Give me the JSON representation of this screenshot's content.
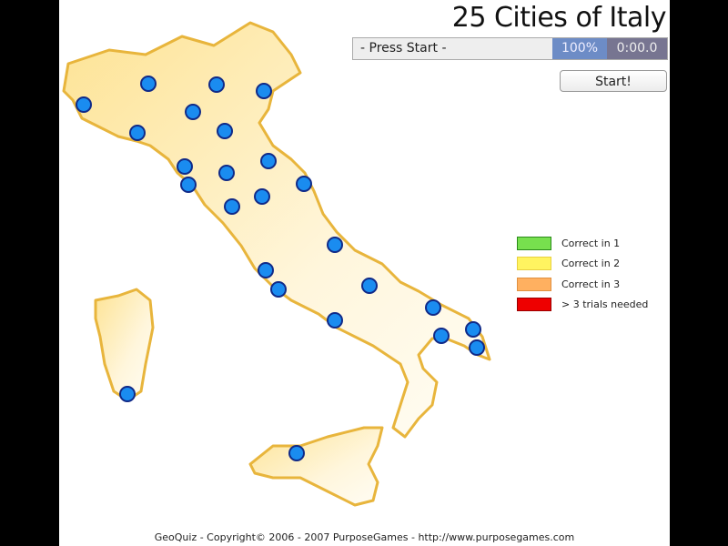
{
  "title": "25 Cities of Italy",
  "status": {
    "message": "- Press Start -",
    "percent": "100%",
    "timer": "0:00.0"
  },
  "start_button": "Start!",
  "legend": [
    {
      "label": "Correct in 1",
      "color": "#77e04e"
    },
    {
      "label": "Correct in 2",
      "color": "#fff460"
    },
    {
      "label": "Correct in 3",
      "color": "#ffb060"
    },
    {
      "label": "> 3 trials needed",
      "color": "#ee0000"
    }
  ],
  "map": {
    "region": "Italy",
    "city_count": 25,
    "dot_color": "#1a8cf0",
    "land_color": "#fde9a8",
    "border_color": "#e8b53c"
  },
  "footer": "GeoQuiz - Copyright© 2006 - 2007 PurposeGames - http://www.purposegames.com"
}
